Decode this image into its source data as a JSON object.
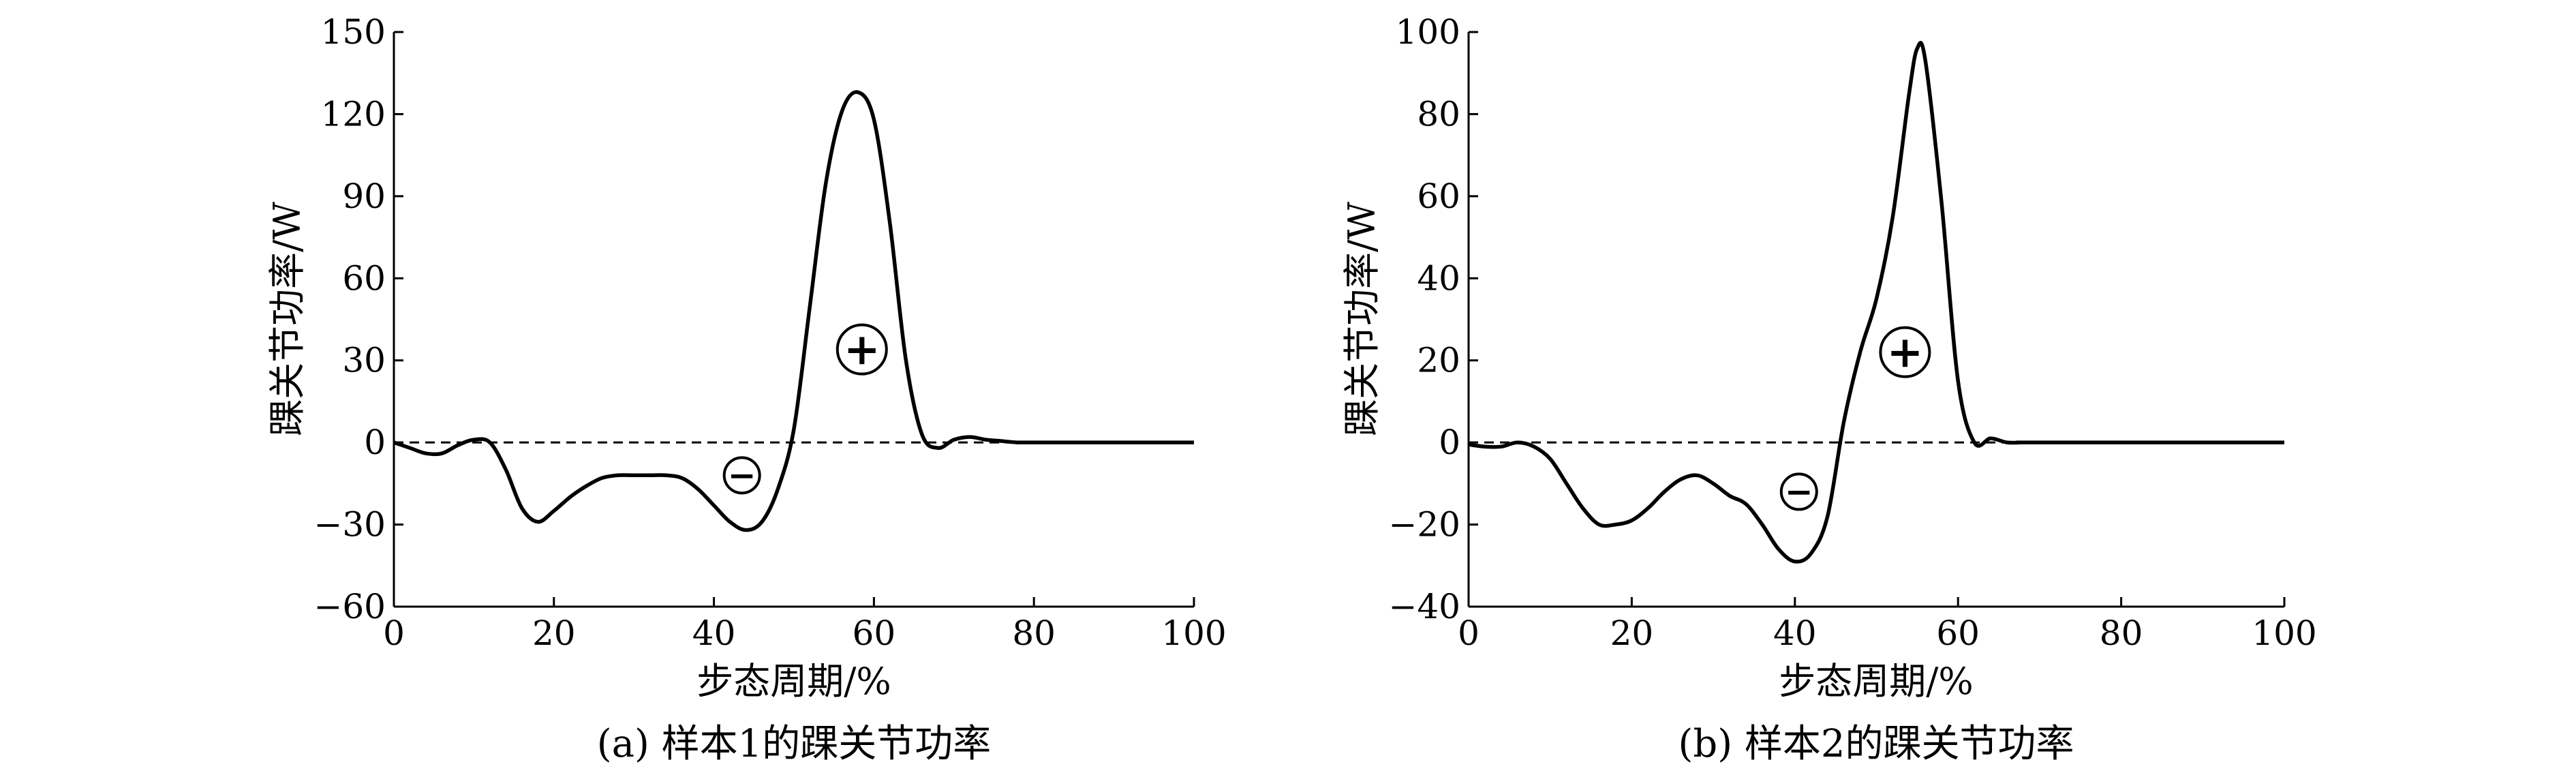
{
  "chart_data": [
    {
      "type": "line",
      "caption": "(a) 样本1的踝关节功率",
      "xlabel": "步态周期/%",
      "ylabel": "踝关节功率/W",
      "xlim": [
        0,
        100
      ],
      "ylim": [
        -60,
        150
      ],
      "xticks": [
        "0",
        "20",
        "40",
        "60",
        "80",
        "100"
      ],
      "yticks": [
        "−60",
        "−30",
        "0",
        "30",
        "60",
        "90",
        "120",
        "150"
      ],
      "zero_line": "dashed",
      "annotations": [
        {
          "text": "−",
          "x": 43.5,
          "y": -12
        },
        {
          "text": "+",
          "x": 58.5,
          "y": 34
        }
      ],
      "series": [
        {
          "x": [
            0,
            2,
            4,
            6,
            8,
            10,
            12,
            14,
            16,
            18,
            20,
            22,
            24,
            26,
            28,
            30,
            32,
            34,
            36,
            38,
            40,
            42,
            44,
            46,
            48,
            50,
            52,
            54,
            56,
            58,
            60,
            62,
            64,
            66,
            68,
            70,
            72,
            74,
            76,
            78,
            80,
            100
          ],
          "y": [
            0,
            -2,
            -4,
            -4,
            -1,
            1,
            0,
            -10,
            -24,
            -29,
            -25,
            -20,
            -16,
            -13,
            -12,
            -12,
            -12,
            -12,
            -13,
            -17,
            -23,
            -29,
            -32,
            -29,
            -17,
            5,
            50,
            95,
            121,
            128,
            118,
            80,
            30,
            3,
            -2,
            1,
            2,
            1,
            0.5,
            0,
            0,
            0
          ]
        }
      ]
    },
    {
      "type": "line",
      "caption": "(b) 样本2的踝关节功率",
      "xlabel": "步态周期/%",
      "ylabel": "踝关节功率/W",
      "xlim": [
        0,
        100
      ],
      "ylim": [
        -40,
        100
      ],
      "xticks": [
        "0",
        "20",
        "40",
        "60",
        "80",
        "100"
      ],
      "yticks": [
        "−40",
        "−20",
        "0",
        "20",
        "40",
        "60",
        "80",
        "100"
      ],
      "zero_line": "dashed",
      "annotations": [
        {
          "text": "−",
          "x": 40.5,
          "y": -12
        },
        {
          "text": "+",
          "x": 53.5,
          "y": 22
        }
      ],
      "series": [
        {
          "x": [
            0,
            2,
            4,
            6,
            8,
            10,
            12,
            14,
            16,
            18,
            20,
            22,
            24,
            26,
            28,
            30,
            32,
            34,
            36,
            38,
            40,
            42,
            44,
            46,
            48,
            50,
            52,
            54,
            55,
            56,
            58,
            60,
            62,
            64,
            66,
            68,
            70,
            100
          ],
          "y": [
            -0.5,
            -1,
            -1,
            0,
            -1,
            -4,
            -10,
            -16,
            -20,
            -20,
            -19,
            -16,
            -12,
            -9,
            -8,
            -10,
            -13,
            -15,
            -20,
            -26,
            -29,
            -27,
            -18,
            5,
            22,
            35,
            55,
            85,
            96,
            93,
            58,
            15,
            0,
            1,
            0,
            0,
            0,
            0
          ]
        }
      ]
    }
  ]
}
